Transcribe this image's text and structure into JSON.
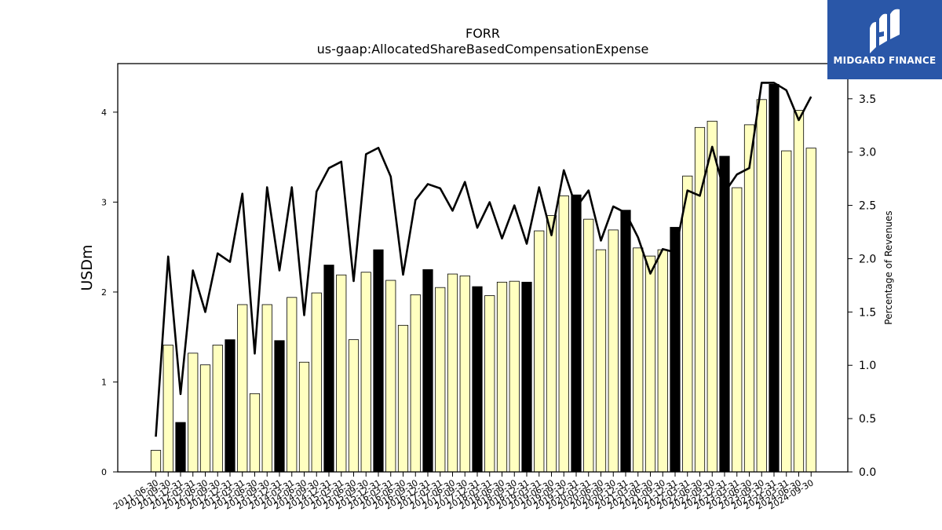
{
  "brand": {
    "name": "MIDGARD FINANCE",
    "background": "#2a57a8"
  },
  "chart_data": {
    "type": "bar",
    "title": "FORR",
    "subtitle": "us-gaap:AllocatedShareBasedCompensationExpense",
    "ylabel": "USDm",
    "y2label": "Percentage of Revenues",
    "ylim": [
      0,
      4.54
    ],
    "y2lim": [
      0,
      3.83
    ],
    "yticks": [
      0,
      1,
      2,
      3,
      4
    ],
    "y2ticks": [
      "0.0",
      "0.5",
      "1.0",
      "1.5",
      "2.0",
      "2.5",
      "3.0",
      "3.5"
    ],
    "categories": [
      "2011-06-30",
      "2011-09-30",
      "2011-12-31",
      "2012-03-31",
      "2012-06-30",
      "2012-09-30",
      "2012-12-31",
      "2013-03-31",
      "2013-06-30",
      "2013-09-30",
      "2013-12-31",
      "2014-03-31",
      "2014-06-30",
      "2014-09-30",
      "2014-12-31",
      "2015-03-31",
      "2015-06-30",
      "2015-09-30",
      "2015-12-31",
      "2016-03-31",
      "2016-06-30",
      "2016-09-30",
      "2016-12-31",
      "2017-03-31",
      "2017-06-30",
      "2017-09-30",
      "2017-12-31",
      "2018-03-31",
      "2018-06-30",
      "2018-09-30",
      "2018-12-31",
      "2019-03-31",
      "2019-06-30",
      "2019-09-30",
      "2019-12-31",
      "2020-03-31",
      "2020-06-30",
      "2020-09-30",
      "2020-12-31",
      "2021-03-31",
      "2021-06-30",
      "2021-09-30",
      "2021-12-31",
      "2022-03-31",
      "2022-06-30",
      "2022-09-30",
      "2022-12-31",
      "2023-03-31",
      "2023-06-30",
      "2023-09-30",
      "2023-12-31",
      "2024-03-31",
      "2024-06-30",
      "2024-09-30"
    ],
    "series": [
      {
        "kind": "bar",
        "values": [
          0.24,
          1.41,
          0.55,
          1.32,
          1.19,
          1.41,
          1.47,
          1.86,
          0.87,
          1.86,
          1.46,
          1.94,
          1.22,
          1.99,
          2.3,
          2.19,
          1.47,
          2.22,
          2.47,
          2.13,
          1.63,
          1.97,
          2.25,
          2.05,
          2.2,
          2.18,
          2.06,
          1.96,
          2.11,
          2.12,
          2.11,
          2.68,
          2.85,
          3.07,
          3.08,
          2.81,
          2.47,
          2.69,
          2.91,
          2.49,
          2.4,
          2.47,
          2.72,
          3.29,
          3.83,
          3.9,
          3.51,
          3.16,
          3.86,
          4.14,
          4.31,
          3.57,
          4.02,
          3.6
        ],
        "highlight": [
          false,
          false,
          true,
          false,
          false,
          false,
          true,
          false,
          false,
          false,
          true,
          false,
          false,
          false,
          true,
          false,
          false,
          false,
          true,
          false,
          false,
          false,
          true,
          false,
          false,
          false,
          true,
          false,
          false,
          false,
          true,
          false,
          false,
          false,
          true,
          false,
          false,
          false,
          true,
          false,
          false,
          false,
          true,
          false,
          false,
          false,
          true,
          false,
          false,
          false,
          true,
          false,
          false,
          false
        ],
        "color": "#ffffc0",
        "highlight_color": "#000000"
      },
      {
        "kind": "line",
        "axis": "right",
        "values": [
          0.33,
          2.02,
          0.73,
          1.89,
          1.5,
          2.05,
          1.97,
          2.61,
          1.11,
          2.67,
          1.89,
          2.67,
          1.47,
          2.63,
          2.85,
          2.91,
          1.79,
          2.98,
          3.04,
          2.77,
          1.85,
          2.55,
          2.7,
          2.66,
          2.45,
          2.72,
          2.29,
          2.53,
          2.19,
          2.5,
          2.14,
          2.67,
          2.22,
          2.83,
          2.48,
          2.64,
          2.17,
          2.49,
          2.43,
          2.2,
          1.86,
          2.09,
          2.06,
          2.64,
          2.59,
          3.05,
          2.62,
          2.79,
          2.85,
          3.65,
          3.65,
          3.58,
          3.3,
          3.52
        ],
        "color": "#000000"
      }
    ],
    "grid": false
  }
}
